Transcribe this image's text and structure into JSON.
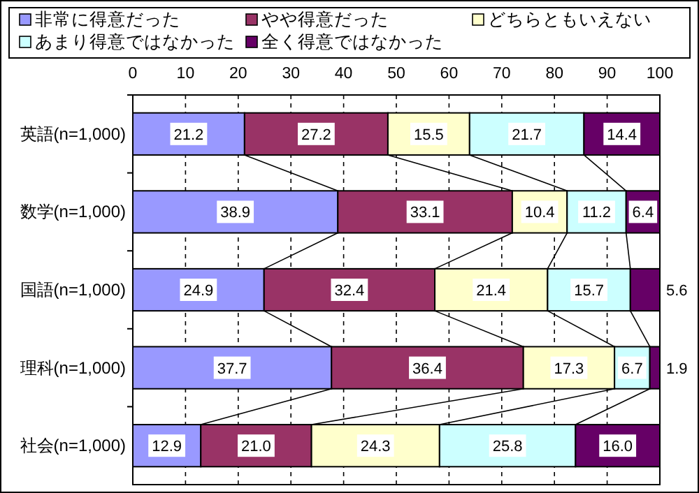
{
  "chart_data": {
    "type": "bar",
    "orientation": "horizontal",
    "stacked": true,
    "categories": [
      "英語(n=1,000)",
      "数学(n=1,000)",
      "国語(n=1,000)",
      "理科(n=1,000)",
      "社会(n=1,000)"
    ],
    "series": [
      {
        "name": "非常に得意だった",
        "color": "#9999ff",
        "values": [
          21.2,
          38.9,
          24.9,
          37.7,
          12.9
        ],
        "value_labels": [
          "21.2",
          "38.9",
          "24.9",
          "37.7",
          "12.9"
        ]
      },
      {
        "name": "やや得意だった",
        "color": "#993366",
        "values": [
          27.2,
          33.1,
          32.4,
          36.4,
          21.0
        ],
        "value_labels": [
          "27.2",
          "33.1",
          "32.4",
          "36.4",
          "21.0"
        ]
      },
      {
        "name": "どちらともいえない",
        "color": "#ffffcc",
        "values": [
          15.5,
          10.4,
          21.4,
          17.3,
          24.3
        ],
        "value_labels": [
          "15.5",
          "10.4",
          "21.4",
          "17.3",
          "24.3"
        ]
      },
      {
        "name": "あまり得意ではなかった",
        "color": "#ccffff",
        "values": [
          21.7,
          11.2,
          15.7,
          6.7,
          25.8
        ],
        "value_labels": [
          "21.7",
          "11.2",
          "15.7",
          "6.7",
          "25.8"
        ]
      },
      {
        "name": "全く得意ではなかった",
        "color": "#660066",
        "values": [
          14.4,
          6.4,
          5.6,
          1.9,
          16.0
        ],
        "value_labels": [
          "14.4",
          "6.4",
          "5.6",
          "1.9",
          "16.0"
        ]
      }
    ],
    "xlim": [
      0,
      100
    ],
    "xticks": [
      0,
      10,
      20,
      30,
      40,
      50,
      60,
      70,
      80,
      90,
      100
    ],
    "grid": "x",
    "legend": "top"
  }
}
